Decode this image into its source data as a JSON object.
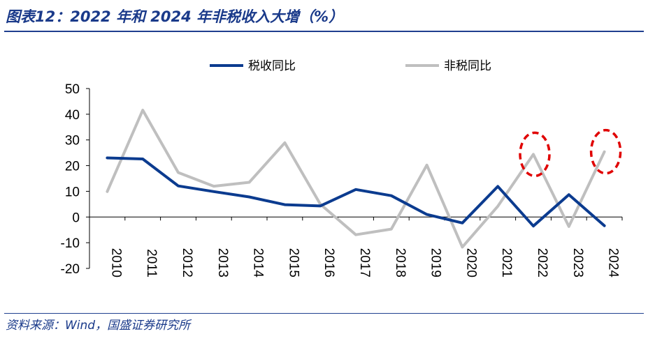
{
  "header": {
    "title": "图表12：2022 年和 2024 年非税收入大增（%）"
  },
  "footer": {
    "source": "资料来源：Wind，国盛证券研究所"
  },
  "chart_data": {
    "type": "line",
    "title": "2022 年和 2024 年非税收入大增（%）",
    "xlabel": "",
    "ylabel": "",
    "categories": [
      "2010",
      "2011",
      "2012",
      "2013",
      "2014",
      "2015",
      "2016",
      "2017",
      "2018",
      "2019",
      "2020",
      "2021",
      "2022",
      "2023",
      "2024"
    ],
    "ylim": [
      -20,
      50
    ],
    "yticks": [
      50,
      40,
      30,
      20,
      10,
      0,
      -10,
      -20
    ],
    "legend_position": "top-center",
    "series": [
      {
        "name": "税收同比",
        "color": "#0b3b8f",
        "values": [
          23,
          22.6,
          12.1,
          9.9,
          7.8,
          4.8,
          4.3,
          10.7,
          8.3,
          1.0,
          -2.3,
          11.9,
          -3.5,
          8.7,
          -3.4
        ]
      },
      {
        "name": "非税同比",
        "color": "#bfbfbf",
        "values": [
          9.9,
          41.6,
          17.3,
          12.0,
          13.5,
          28.9,
          5.0,
          -6.9,
          -4.7,
          20.2,
          -11.7,
          4.2,
          24.4,
          -3.7,
          25.4
        ]
      }
    ],
    "annotations": [
      {
        "type": "dashed-ellipse",
        "category": "2022",
        "color": "#e00000"
      },
      {
        "type": "dashed-ellipse",
        "category": "2024",
        "color": "#e00000"
      }
    ]
  }
}
